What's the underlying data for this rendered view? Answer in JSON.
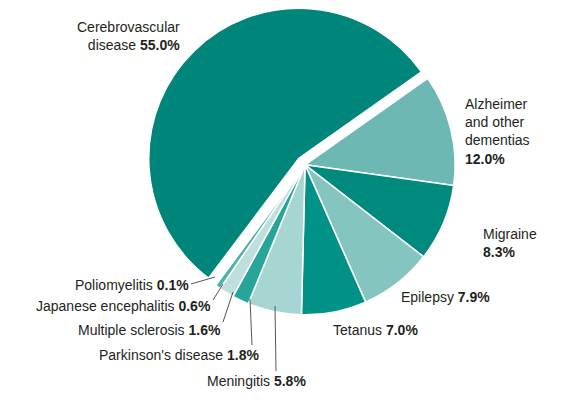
{
  "chart_data": {
    "type": "pie",
    "categories": [
      "Cerebrovascular disease",
      "Alzheimer and other dementias",
      "Migraine",
      "Epilepsy",
      "Tetanus",
      "Meningitis",
      "Parkinson's disease",
      "Multiple sclerosis",
      "Japanese encephalitis",
      "Poliomyelitis"
    ],
    "values": [
      55.0,
      12.0,
      8.3,
      7.9,
      7.0,
      5.8,
      1.8,
      1.6,
      0.6,
      0.1
    ],
    "value_labels": [
      "55.0%",
      "12.0%",
      "8.3%",
      "7.9%",
      "7.0%",
      "5.8%",
      "1.8%",
      "1.6%",
      "0.6%",
      "0.1%"
    ],
    "colors": [
      "#00857a",
      "#6db8b2",
      "#008a7e",
      "#85c5bf",
      "#009286",
      "#a6d6d1",
      "#25a699",
      "#bde0dc",
      "#4eb3a9",
      "#d3ebe8"
    ],
    "data_labels": true
  }
}
